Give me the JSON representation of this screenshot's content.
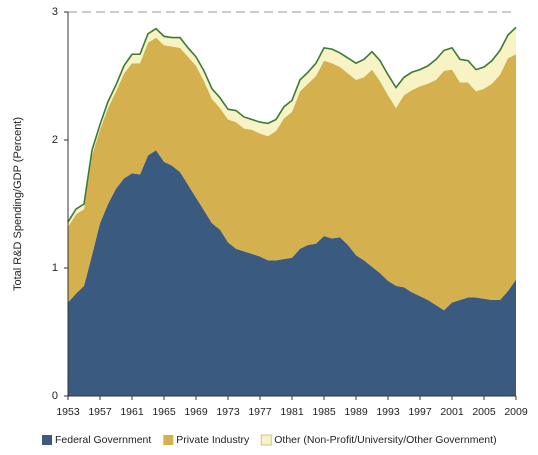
{
  "chart_data": {
    "type": "stacked_area",
    "y_label": "Total R&D Spending/GDP (Percent)",
    "x": [
      1953,
      1954,
      1955,
      1956,
      1957,
      1958,
      1959,
      1960,
      1961,
      1962,
      1963,
      1964,
      1965,
      1966,
      1967,
      1968,
      1969,
      1970,
      1971,
      1972,
      1973,
      1974,
      1975,
      1976,
      1977,
      1978,
      1979,
      1980,
      1981,
      1982,
      1983,
      1984,
      1985,
      1986,
      1987,
      1988,
      1989,
      1990,
      1991,
      1992,
      1993,
      1994,
      1995,
      1996,
      1997,
      1998,
      1999,
      2000,
      2001,
      2002,
      2003,
      2004,
      2005,
      2006,
      2007,
      2008,
      2009
    ],
    "xlim": [
      1953,
      2009
    ],
    "xticks": [
      1953,
      1957,
      1961,
      1965,
      1969,
      1973,
      1977,
      1981,
      1985,
      1989,
      1993,
      1997,
      2001,
      2005,
      2009
    ],
    "ylim": [
      0,
      3
    ],
    "yticks": [
      0,
      1,
      2,
      3
    ],
    "series": [
      {
        "name": "Federal Government",
        "color": "#3b5a80",
        "values": [
          0.73,
          0.8,
          0.86,
          1.1,
          1.35,
          1.5,
          1.62,
          1.7,
          1.74,
          1.73,
          1.88,
          1.92,
          1.83,
          1.8,
          1.75,
          1.65,
          1.55,
          1.45,
          1.35,
          1.3,
          1.2,
          1.15,
          1.13,
          1.11,
          1.09,
          1.06,
          1.06,
          1.07,
          1.08,
          1.15,
          1.18,
          1.19,
          1.25,
          1.23,
          1.24,
          1.18,
          1.1,
          1.06,
          1.01,
          0.96,
          0.9,
          0.86,
          0.85,
          0.81,
          0.78,
          0.75,
          0.71,
          0.67,
          0.73,
          0.75,
          0.77,
          0.77,
          0.76,
          0.75,
          0.75,
          0.82,
          0.91
        ]
      },
      {
        "name": "Private Industry",
        "color": "#d4b14e",
        "values": [
          0.59,
          0.62,
          0.6,
          0.78,
          0.73,
          0.75,
          0.76,
          0.82,
          0.86,
          0.87,
          0.88,
          0.88,
          0.91,
          0.93,
          0.97,
          1.0,
          1.03,
          1.01,
          0.97,
          0.95,
          0.96,
          0.99,
          0.96,
          0.97,
          0.96,
          0.97,
          1.01,
          1.1,
          1.14,
          1.23,
          1.26,
          1.31,
          1.37,
          1.37,
          1.33,
          1.34,
          1.37,
          1.43,
          1.54,
          1.5,
          1.45,
          1.39,
          1.5,
          1.58,
          1.64,
          1.69,
          1.76,
          1.87,
          1.82,
          1.7,
          1.68,
          1.61,
          1.64,
          1.69,
          1.76,
          1.82,
          1.76
        ]
      },
      {
        "name": "Other (Non-Profit/University/Other Government)",
        "color": "#f8f3c4",
        "values": [
          0.04,
          0.04,
          0.04,
          0.04,
          0.04,
          0.05,
          0.05,
          0.06,
          0.07,
          0.07,
          0.07,
          0.07,
          0.07,
          0.07,
          0.08,
          0.07,
          0.07,
          0.08,
          0.08,
          0.08,
          0.08,
          0.09,
          0.09,
          0.08,
          0.09,
          0.1,
          0.09,
          0.09,
          0.09,
          0.09,
          0.09,
          0.1,
          0.1,
          0.11,
          0.11,
          0.12,
          0.13,
          0.14,
          0.14,
          0.16,
          0.16,
          0.16,
          0.14,
          0.14,
          0.13,
          0.14,
          0.16,
          0.16,
          0.17,
          0.18,
          0.17,
          0.17,
          0.17,
          0.18,
          0.19,
          0.18,
          0.21
        ]
      }
    ]
  }
}
